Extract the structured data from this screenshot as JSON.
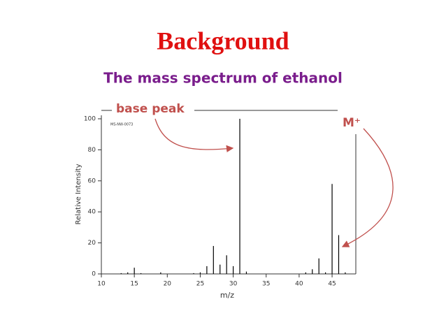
{
  "title": "Background",
  "chart_data": {
    "type": "stick",
    "title": "The mass spectrum of ethanol",
    "code": "MS-NW-0073",
    "x": [
      13,
      14,
      15,
      16,
      19,
      24,
      25,
      26,
      27,
      28,
      29,
      30,
      31,
      32,
      41,
      42,
      43,
      44,
      45,
      46,
      47
    ],
    "values": [
      0.5,
      1,
      4,
      0.5,
      1,
      0.5,
      1,
      5,
      18,
      6,
      12,
      5,
      100,
      1.5,
      1,
      3,
      10,
      1,
      58,
      25,
      1
    ],
    "color": "#000000",
    "xlim": [
      10,
      48.6
    ],
    "ylim": [
      0,
      100
    ],
    "xticks": [
      10,
      15,
      20,
      25,
      30,
      35,
      40,
      45
    ],
    "yticks": [
      0,
      20,
      40,
      60,
      80,
      100
    ],
    "xlabel": "m/z",
    "ylabel": "Relative Intensity",
    "annotations": [
      {
        "text": "base peak"
      },
      {
        "text": "M⁺"
      }
    ]
  }
}
